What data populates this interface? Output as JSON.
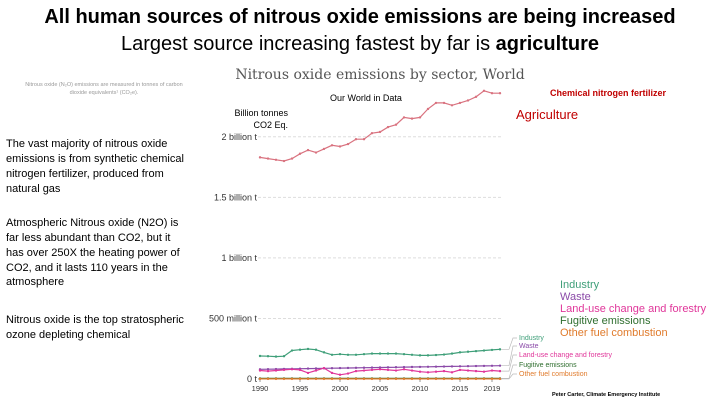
{
  "header": {
    "title": "All human sources of nitrous oxide emissions are being increased",
    "subtitle_prefix": "Largest source increasing fastest by far is ",
    "subtitle_emphasis": "agriculture"
  },
  "units_note": "Nitrous oxide (N₂O) emissions are measured in tonnes of carbon dioxide equivalents¹ (CO₂e).",
  "side_text": [
    "The vast majority of nitrous oxide emissions is from synthetic chemical nitrogen fertilizer, produced from natural gas",
    "Atmospheric Nitrous oxide (N2O) is far less abundant than CO2, but it has over 250X the heating power of CO2, and it lasts 110 years in the atmosphere",
    "Nitrous oxide is the top stratospheric ozone depleting chemical"
  ],
  "annotations": {
    "source": "Our World in Data",
    "unit_line1": "Billion tonnes",
    "unit_line2": "CO2 Eq.",
    "fertilizer": "Chemical nitrogen fertilizer",
    "agriculture": "Agriculture"
  },
  "credit": "Peter Carter, Climate Emergency Institute",
  "colors": {
    "agriculture": "#d9727f",
    "industry": "#3f9f79",
    "waste": "#8b4aa8",
    "land_use": "#e0369a",
    "fugitive": "#2f6e2f",
    "other_fuel": "#e07b2c",
    "annotation_red": "#c00000",
    "grid": "#dddddd"
  },
  "chart_data": {
    "type": "line",
    "title": "Nitrous oxide emissions by sector, World",
    "x": [
      1990,
      1991,
      1992,
      1993,
      1994,
      1995,
      1996,
      1997,
      1998,
      1999,
      2000,
      2001,
      2002,
      2003,
      2004,
      2005,
      2006,
      2007,
      2008,
      2009,
      2010,
      2011,
      2012,
      2013,
      2014,
      2015,
      2016,
      2017,
      2018,
      2019,
      2020
    ],
    "x_ticks": [
      "1990",
      "1995",
      "2000",
      "2005",
      "2010",
      "2015",
      "2019"
    ],
    "y_ticks": [
      {
        "value": 0,
        "label": "0 t"
      },
      {
        "value": 500000000,
        "label": "500 million t"
      },
      {
        "value": 1000000000,
        "label": "1 billion t"
      },
      {
        "value": 1500000000,
        "label": "1.5 billion t"
      },
      {
        "value": 2000000000,
        "label": "2 billion t"
      }
    ],
    "ylim": [
      0,
      2180000000
    ],
    "grid": true,
    "legend_position": "right",
    "series": [
      {
        "name": "Agriculture",
        "key": "agriculture",
        "values": [
          1830000000.0,
          1820000000.0,
          1810000000.0,
          1800000000.0,
          1820000000.0,
          1860000000.0,
          1890000000.0,
          1870000000.0,
          1900000000.0,
          1930000000.0,
          1920000000.0,
          1940000000.0,
          1980000000.0,
          1980000000.0,
          2030000000.0,
          2040000000.0,
          2080000000.0,
          2100000000.0,
          2160000000.0,
          2150000000.0,
          2160000000.0,
          2230000000.0,
          2280000000.0,
          2280000000.0,
          2260000000.0,
          2280000000.0,
          2300000000.0,
          2330000000.0,
          2380000000.0,
          2360000000.0,
          2360000000.0
        ]
      },
      {
        "name": "Industry",
        "key": "industry",
        "values": [
          190000000.0,
          188000000.0,
          185000000.0,
          188000000.0,
          235000000.0,
          242000000.0,
          248000000.0,
          242000000.0,
          220000000.0,
          200000000.0,
          205000000.0,
          200000000.0,
          200000000.0,
          205000000.0,
          210000000.0,
          210000000.0,
          210000000.0,
          210000000.0,
          205000000.0,
          200000000.0,
          195000000.0,
          195000000.0,
          198000000.0,
          202000000.0,
          210000000.0,
          220000000.0,
          225000000.0,
          230000000.0,
          235000000.0,
          240000000.0,
          245000000.0
        ]
      },
      {
        "name": "Waste",
        "key": "waste",
        "values": [
          80000000.0,
          81000000.0,
          82000000.0,
          83000000.0,
          84000000.0,
          85000000.0,
          86000000.0,
          87000000.0,
          88000000.0,
          89000000.0,
          90000000.0,
          91000000.0,
          92000000.0,
          93000000.0,
          94000000.0,
          95000000.0,
          96000000.0,
          97000000.0,
          98000000.0,
          99000000.0,
          100000000.0,
          101000000.0,
          102000000.0,
          103000000.0,
          104000000.0,
          105000000.0,
          106000000.0,
          107000000.0,
          108000000.0,
          109000000.0,
          110000000.0
        ]
      },
      {
        "name": "Land-use change and forestry",
        "key": "land_use",
        "values": [
          70000000.0,
          65000000.0,
          70000000.0,
          75000000.0,
          80000000.0,
          75000000.0,
          50000000.0,
          70000000.0,
          90000000.0,
          50000000.0,
          35000000.0,
          45000000.0,
          65000000.0,
          70000000.0,
          75000000.0,
          80000000.0,
          75000000.0,
          70000000.0,
          80000000.0,
          70000000.0,
          60000000.0,
          55000000.0,
          60000000.0,
          65000000.0,
          55000000.0,
          75000000.0,
          70000000.0,
          65000000.0,
          60000000.0,
          70000000.0,
          65000000.0
        ]
      },
      {
        "name": "Fugitive emissions",
        "key": "fugitive",
        "values": [
          5000000.0,
          5000000.0,
          5000000.0,
          5000000.0,
          5000000.0,
          5000000.0,
          5000000.0,
          5000000.0,
          5000000.0,
          5000000.0,
          5000000.0,
          5000000.0,
          5000000.0,
          5000000.0,
          5000000.0,
          5000000.0,
          5000000.0,
          5000000.0,
          5000000.0,
          5000000.0,
          5000000.0,
          5000000.0,
          5000000.0,
          5000000.0,
          5000000.0,
          5000000.0,
          5000000.0,
          5000000.0,
          5000000.0,
          5000000.0,
          5000000.0
        ]
      },
      {
        "name": "Other fuel combustion",
        "key": "other_fuel",
        "values": [
          1000000.0,
          1000000.0,
          1000000.0,
          1000000.0,
          1000000.0,
          1000000.0,
          1000000.0,
          1000000.0,
          1000000.0,
          1000000.0,
          1000000.0,
          1000000.0,
          1000000.0,
          1000000.0,
          1000000.0,
          1000000.0,
          1000000.0,
          1000000.0,
          1000000.0,
          1000000.0,
          1000000.0,
          1000000.0,
          1000000.0,
          1000000.0,
          1000000.0,
          1000000.0,
          1000000.0,
          1000000.0,
          1000000.0,
          1000000.0,
          1000000.0
        ]
      }
    ]
  }
}
